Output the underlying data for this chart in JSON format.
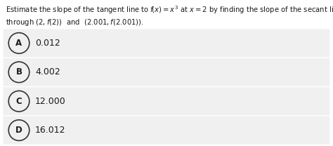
{
  "question_line1": "Estimate the slope of the tangent line to $f\\!(x)=x^3$ at $x=2$ by finding the slope of the secant line",
  "question_line2": "through $(2, f(2))$  and  $(2.001, f(2.001))$.",
  "options": [
    {
      "label": "A",
      "value": "0.012"
    },
    {
      "label": "B",
      "value": "4.002"
    },
    {
      "label": "C",
      "value": "12.000"
    },
    {
      "label": "D",
      "value": "16.012"
    }
  ],
  "bg_color": "#ffffff",
  "option_bg_color": "#f0f0f0",
  "text_color": "#1a1a1a",
  "circle_edge_color": "#333333",
  "circle_face_color": "#f0f0f0",
  "font_size_question": 7.2,
  "font_size_options": 9.0,
  "font_size_labels": 8.5,
  "fig_width": 4.74,
  "fig_height": 2.08,
  "dpi": 100
}
